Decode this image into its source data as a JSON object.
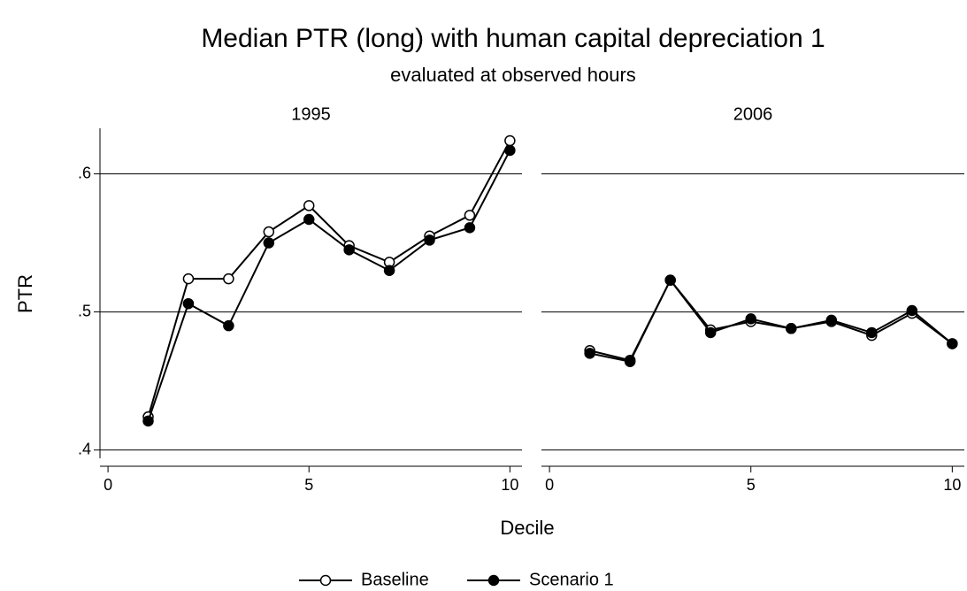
{
  "title": "Median PTR (long) with human capital depreciation 1",
  "subtitle": "evaluated at observed hours",
  "x_label": "Decile",
  "y_label": "PTR",
  "chart_data": [
    {
      "type": "line",
      "title": "1995",
      "x": [
        1,
        2,
        3,
        4,
        5,
        6,
        7,
        8,
        9,
        10
      ],
      "series": [
        {
          "name": "Baseline",
          "color": "#000000",
          "marker": "hollow",
          "values": [
            0.424,
            0.524,
            0.524,
            0.558,
            0.577,
            0.548,
            0.536,
            0.555,
            0.57,
            0.624
          ]
        },
        {
          "name": "Scenario 1",
          "color": "#000000",
          "marker": "filled",
          "values": [
            0.421,
            0.506,
            0.49,
            0.55,
            0.567,
            0.545,
            0.53,
            0.552,
            0.561,
            0.617
          ]
        }
      ],
      "xlim": [
        -0.2,
        10.3
      ],
      "ylim": [
        0.394,
        0.633
      ],
      "xticks": [
        0,
        5,
        10
      ],
      "yticks": [
        {
          "value": 0.4,
          "label": ".4"
        },
        {
          "value": 0.5,
          "label": ".5"
        },
        {
          "value": 0.6,
          "label": ".6"
        }
      ],
      "grid": true
    },
    {
      "type": "line",
      "title": "2006",
      "x": [
        1,
        2,
        3,
        4,
        5,
        6,
        7,
        8,
        9,
        10
      ],
      "series": [
        {
          "name": "Baseline",
          "color": "#000000",
          "marker": "hollow",
          "values": [
            0.472,
            0.465,
            0.523,
            0.487,
            0.493,
            0.488,
            0.493,
            0.483,
            0.499,
            0.477
          ]
        },
        {
          "name": "Scenario 1",
          "color": "#000000",
          "marker": "filled",
          "values": [
            0.47,
            0.464,
            0.523,
            0.485,
            0.495,
            0.488,
            0.494,
            0.485,
            0.501,
            0.477
          ]
        }
      ],
      "xlim": [
        -0.2,
        10.3
      ],
      "ylim": [
        0.394,
        0.633
      ],
      "xticks": [
        0,
        5,
        10
      ],
      "yticks": [
        {
          "value": 0.4,
          "label": ".4"
        },
        {
          "value": 0.5,
          "label": ".5"
        },
        {
          "value": 0.6,
          "label": ".6"
        }
      ],
      "grid": true
    }
  ]
}
